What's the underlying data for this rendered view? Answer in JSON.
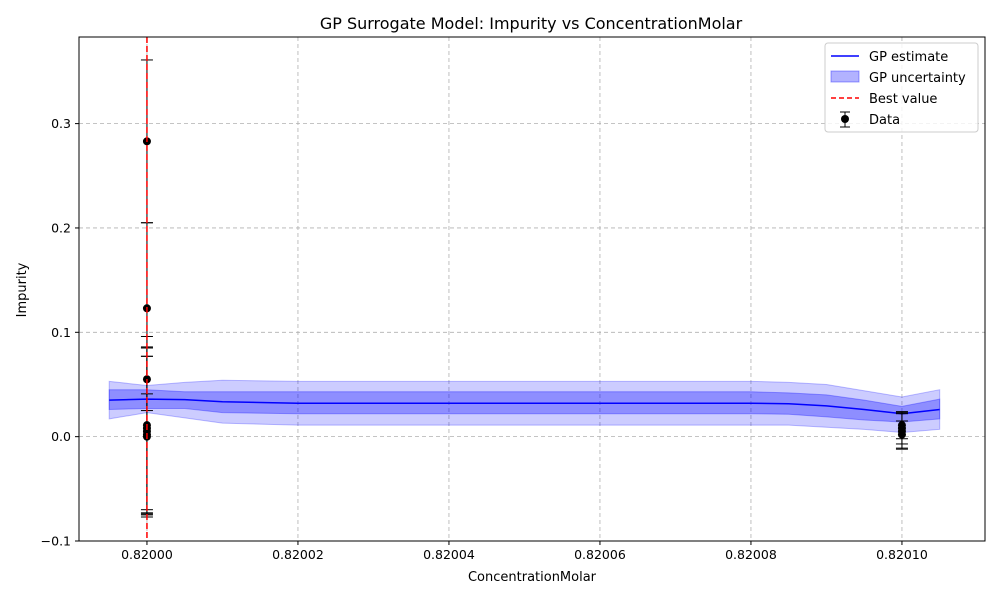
{
  "chart_data": {
    "type": "line",
    "title": "GP Surrogate Model: Impurity vs ConcentrationMolar",
    "xlabel": "ConcentrationMolar",
    "ylabel": "Impurity",
    "xlim": [
      0.819991,
      0.820111
    ],
    "ylim": [
      -0.1,
      0.383
    ],
    "x_ticks": [
      0.82,
      0.82002,
      0.82004,
      0.82006,
      0.82008,
      0.8201
    ],
    "x_tick_labels": [
      "0.82000",
      "0.82002",
      "0.82004",
      "0.82006",
      "0.82008",
      "0.82010"
    ],
    "y_ticks": [
      -0.1,
      0.0,
      0.1,
      0.2,
      0.3
    ],
    "y_tick_labels": [
      "−0.1",
      "0.0",
      "0.1",
      "0.2",
      "0.3"
    ],
    "grid": true,
    "legend_position": "top-right",
    "legend": [
      "GP estimate",
      "GP uncertainty",
      "Best value",
      "Data"
    ],
    "colors": {
      "gp_line": "#0000ff",
      "gp_band": "#0000ff",
      "best_value": "#ff0000",
      "data": "#000000",
      "grid": "#b0b0b0"
    },
    "gp_estimate": {
      "name": "GP estimate",
      "x": [
        0.819995,
        0.82,
        0.820005,
        0.82001,
        0.82002,
        0.82003,
        0.82004,
        0.82005,
        0.82006,
        0.82007,
        0.82008,
        0.820085,
        0.82009,
        0.820095,
        0.8201,
        0.820105
      ],
      "y": [
        0.035,
        0.036,
        0.0355,
        0.0335,
        0.032,
        0.032,
        0.032,
        0.032,
        0.032,
        0.032,
        0.032,
        0.0315,
        0.0295,
        0.026,
        0.022,
        0.026
      ],
      "inner_upper": [
        0.045,
        0.045,
        0.043,
        0.043,
        0.043,
        0.043,
        0.043,
        0.043,
        0.043,
        0.043,
        0.043,
        0.042,
        0.04,
        0.035,
        0.029,
        0.036
      ],
      "inner_lower": [
        0.026,
        0.027,
        0.027,
        0.023,
        0.022,
        0.022,
        0.022,
        0.022,
        0.022,
        0.022,
        0.022,
        0.0215,
        0.019,
        0.016,
        0.014,
        0.017
      ],
      "outer_upper": [
        0.053,
        0.049,
        0.052,
        0.054,
        0.053,
        0.053,
        0.053,
        0.053,
        0.053,
        0.053,
        0.053,
        0.052,
        0.05,
        0.044,
        0.038,
        0.045
      ],
      "outer_lower": [
        0.017,
        0.023,
        0.018,
        0.013,
        0.011,
        0.011,
        0.011,
        0.011,
        0.011,
        0.011,
        0.011,
        0.011,
        0.009,
        0.007,
        0.004,
        0.007
      ]
    },
    "best_value_x": 0.82,
    "data_points": [
      {
        "x": 0.82,
        "y": 0.283,
        "err": 0.078
      },
      {
        "x": 0.82,
        "y": 0.123,
        "err": 0.082
      },
      {
        "x": 0.82,
        "y": 0.055,
        "err": 0.03
      },
      {
        "x": 0.82,
        "y": 0.011,
        "err": 0.085
      },
      {
        "x": 0.82,
        "y": 0.008,
        "err": 0.078
      },
      {
        "x": 0.82,
        "y": 0.005,
        "err": 0.08
      },
      {
        "x": 0.82,
        "y": 0.002,
        "err": 0.075
      },
      {
        "x": 0.82,
        "y": 0.0,
        "err": 0.077
      },
      {
        "x": 0.8201,
        "y": 0.011,
        "err": 0.013
      },
      {
        "x": 0.8201,
        "y": 0.008,
        "err": 0.015
      },
      {
        "x": 0.8201,
        "y": 0.005,
        "err": 0.017
      },
      {
        "x": 0.8201,
        "y": 0.002,
        "err": 0.013
      }
    ]
  }
}
